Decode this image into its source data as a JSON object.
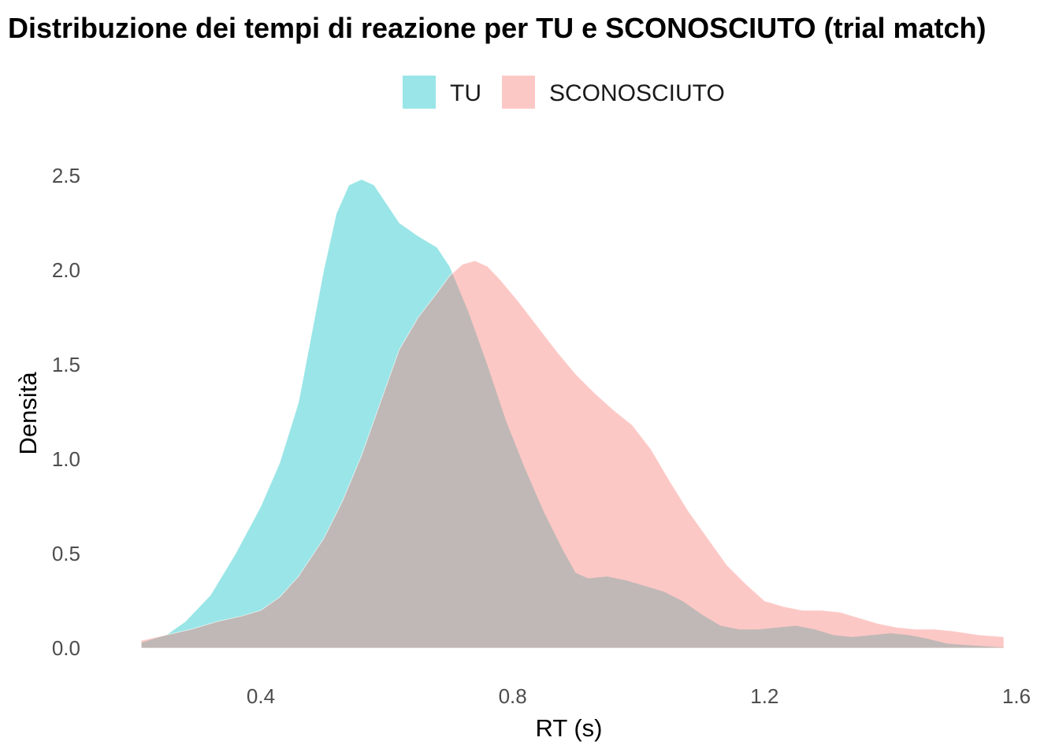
{
  "chart_data": {
    "type": "area",
    "title": "Distribuzione dei tempi di reazione per TU e SCONOSCIUTO (trial match)",
    "xlabel": "RT (s)",
    "ylabel": "Densità",
    "xlim": [
      0.2,
      1.6
    ],
    "ylim": [
      0,
      2.5
    ],
    "x_ticks": [
      0.4,
      0.8,
      1.2,
      1.6
    ],
    "y_ticks": [
      0.0,
      0.5,
      1.0,
      1.5,
      2.0,
      2.5
    ],
    "x_tick_labels": [
      "0.4",
      "0.8",
      "1.2",
      "1.6"
    ],
    "y_tick_labels": [
      "0.0",
      "0.5",
      "1.0",
      "1.5",
      "2.0",
      "2.5"
    ],
    "legend_position": "top",
    "grid": false,
    "series": [
      {
        "name": "TU",
        "color": "#00BFC4",
        "opacity": 0.4,
        "points": [
          [
            0.21,
            0.03
          ],
          [
            0.25,
            0.07
          ],
          [
            0.28,
            0.14
          ],
          [
            0.32,
            0.28
          ],
          [
            0.36,
            0.5
          ],
          [
            0.4,
            0.75
          ],
          [
            0.43,
            0.98
          ],
          [
            0.46,
            1.3
          ],
          [
            0.48,
            1.65
          ],
          [
            0.5,
            2.0
          ],
          [
            0.52,
            2.3
          ],
          [
            0.54,
            2.45
          ],
          [
            0.56,
            2.48
          ],
          [
            0.58,
            2.45
          ],
          [
            0.6,
            2.35
          ],
          [
            0.62,
            2.25
          ],
          [
            0.65,
            2.18
          ],
          [
            0.68,
            2.12
          ],
          [
            0.7,
            2.02
          ],
          [
            0.73,
            1.78
          ],
          [
            0.76,
            1.5
          ],
          [
            0.79,
            1.2
          ],
          [
            0.82,
            0.95
          ],
          [
            0.85,
            0.72
          ],
          [
            0.88,
            0.52
          ],
          [
            0.9,
            0.4
          ],
          [
            0.92,
            0.37
          ],
          [
            0.95,
            0.38
          ],
          [
            0.98,
            0.36
          ],
          [
            1.01,
            0.33
          ],
          [
            1.04,
            0.3
          ],
          [
            1.07,
            0.25
          ],
          [
            1.1,
            0.18
          ],
          [
            1.13,
            0.12
          ],
          [
            1.16,
            0.1
          ],
          [
            1.19,
            0.1
          ],
          [
            1.22,
            0.11
          ],
          [
            1.25,
            0.12
          ],
          [
            1.28,
            0.1
          ],
          [
            1.31,
            0.07
          ],
          [
            1.34,
            0.06
          ],
          [
            1.37,
            0.07
          ],
          [
            1.4,
            0.08
          ],
          [
            1.43,
            0.07
          ],
          [
            1.46,
            0.05
          ],
          [
            1.49,
            0.025
          ],
          [
            1.53,
            0.015
          ],
          [
            1.58,
            0.005
          ]
        ]
      },
      {
        "name": "SCONOSCIUTO",
        "color": "#F8766D",
        "opacity": 0.4,
        "points": [
          [
            0.21,
            0.04
          ],
          [
            0.25,
            0.07
          ],
          [
            0.29,
            0.1
          ],
          [
            0.33,
            0.14
          ],
          [
            0.37,
            0.17
          ],
          [
            0.4,
            0.2
          ],
          [
            0.43,
            0.27
          ],
          [
            0.46,
            0.38
          ],
          [
            0.5,
            0.58
          ],
          [
            0.53,
            0.78
          ],
          [
            0.56,
            1.02
          ],
          [
            0.59,
            1.3
          ],
          [
            0.62,
            1.58
          ],
          [
            0.65,
            1.75
          ],
          [
            0.68,
            1.88
          ],
          [
            0.7,
            1.97
          ],
          [
            0.72,
            2.03
          ],
          [
            0.74,
            2.05
          ],
          [
            0.76,
            2.02
          ],
          [
            0.78,
            1.95
          ],
          [
            0.81,
            1.83
          ],
          [
            0.84,
            1.7
          ],
          [
            0.87,
            1.57
          ],
          [
            0.9,
            1.45
          ],
          [
            0.93,
            1.35
          ],
          [
            0.96,
            1.26
          ],
          [
            0.99,
            1.18
          ],
          [
            1.02,
            1.05
          ],
          [
            1.05,
            0.88
          ],
          [
            1.08,
            0.72
          ],
          [
            1.11,
            0.58
          ],
          [
            1.14,
            0.44
          ],
          [
            1.17,
            0.34
          ],
          [
            1.2,
            0.25
          ],
          [
            1.23,
            0.22
          ],
          [
            1.26,
            0.2
          ],
          [
            1.29,
            0.2
          ],
          [
            1.32,
            0.19
          ],
          [
            1.35,
            0.16
          ],
          [
            1.38,
            0.13
          ],
          [
            1.41,
            0.11
          ],
          [
            1.44,
            0.1
          ],
          [
            1.47,
            0.1
          ],
          [
            1.5,
            0.09
          ],
          [
            1.54,
            0.07
          ],
          [
            1.58,
            0.06
          ]
        ]
      }
    ]
  }
}
